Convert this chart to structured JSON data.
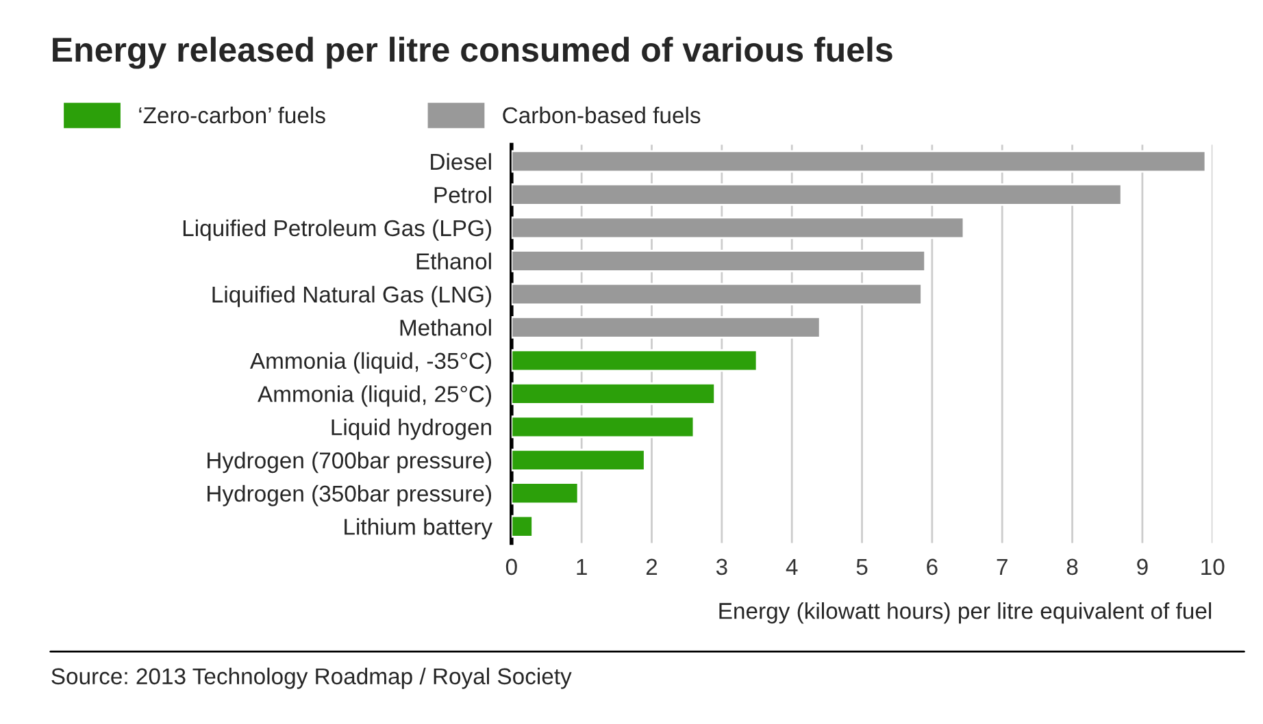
{
  "chart_data": {
    "type": "bar",
    "orientation": "horizontal",
    "title": "Energy released per litre consumed of various fuels",
    "categories": [
      "Diesel",
      "Petrol",
      "Liquified Petroleum Gas (LPG)",
      "Ethanol",
      "Liquified Natural Gas (LNG)",
      "Methanol",
      "Ammonia (liquid, -35°C)",
      "Ammonia (liquid, 25°C)",
      "Liquid hydrogen",
      "Hydrogen (700bar pressure)",
      "Hydrogen (350bar pressure)",
      "Lithium battery"
    ],
    "series": [
      {
        "name": "‘Zero-carbon’ fuels",
        "color": "#2ca00a",
        "values": [
          null,
          null,
          null,
          null,
          null,
          null,
          3.5,
          2.9,
          2.6,
          1.9,
          0.95,
          0.3
        ]
      },
      {
        "name": "Carbon-based fuels",
        "color": "#999999",
        "values": [
          9.9,
          8.7,
          6.45,
          5.9,
          5.85,
          4.4,
          null,
          null,
          null,
          null,
          null,
          null
        ]
      }
    ],
    "xlim": [
      0,
      10
    ],
    "xticks": [
      0,
      1,
      2,
      3,
      4,
      5,
      6,
      7,
      8,
      9,
      10
    ],
    "grid": "x",
    "legend": "top left",
    "xlabel": "Energy (kilowatt hours) per litre equivalent of fuel",
    "annotations": [
      "Source: 2013 Technology Roadmap / Royal Society"
    ]
  }
}
